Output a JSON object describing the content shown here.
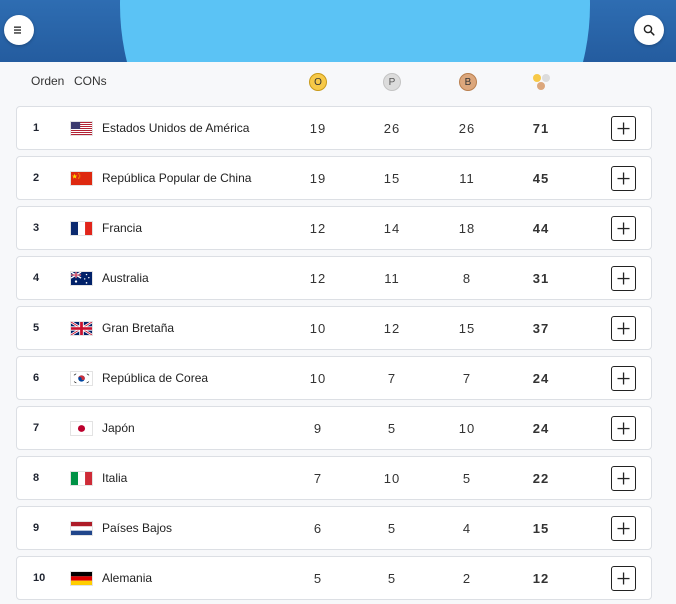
{
  "header": {
    "menu_icon": "menu-icon",
    "search_icon": "search-icon",
    "columns": {
      "rank": "Orden",
      "country": "CONs",
      "gold": "O",
      "silver": "P",
      "bronze": "B"
    }
  },
  "colors": {
    "gold": "#f7c948",
    "silver": "#dcdcdc",
    "bronze": "#dca77c",
    "accent": "#2e6db2"
  },
  "rows": [
    {
      "rank": "1",
      "country": "Estados Unidos de América",
      "flag": "usa-flag-icon",
      "gold": "19",
      "silver": "26",
      "bronze": "26",
      "total": "71"
    },
    {
      "rank": "2",
      "country": "República Popular de China",
      "flag": "china-flag-icon",
      "gold": "19",
      "silver": "15",
      "bronze": "11",
      "total": "45"
    },
    {
      "rank": "3",
      "country": "Francia",
      "flag": "france-flag-icon",
      "gold": "12",
      "silver": "14",
      "bronze": "18",
      "total": "44"
    },
    {
      "rank": "4",
      "country": "Australia",
      "flag": "australia-flag-icon",
      "gold": "12",
      "silver": "11",
      "bronze": "8",
      "total": "31"
    },
    {
      "rank": "5",
      "country": "Gran Bretaña",
      "flag": "uk-flag-icon",
      "gold": "10",
      "silver": "12",
      "bronze": "15",
      "total": "37"
    },
    {
      "rank": "6",
      "country": "República de Corea",
      "flag": "korea-flag-icon",
      "gold": "10",
      "silver": "7",
      "bronze": "7",
      "total": "24"
    },
    {
      "rank": "7",
      "country": "Japón",
      "flag": "japan-flag-icon",
      "gold": "9",
      "silver": "5",
      "bronze": "10",
      "total": "24"
    },
    {
      "rank": "8",
      "country": "Italia",
      "flag": "italy-flag-icon",
      "gold": "7",
      "silver": "10",
      "bronze": "5",
      "total": "22"
    },
    {
      "rank": "9",
      "country": "Países Bajos",
      "flag": "netherlands-flag-icon",
      "gold": "6",
      "silver": "5",
      "bronze": "4",
      "total": "15"
    },
    {
      "rank": "10",
      "country": "Alemania",
      "flag": "germany-flag-icon",
      "gold": "5",
      "silver": "5",
      "bronze": "2",
      "total": "12"
    }
  ]
}
